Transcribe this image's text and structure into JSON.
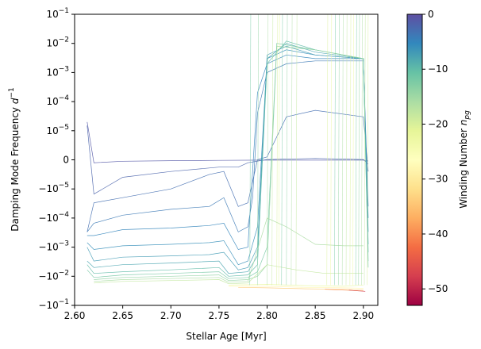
{
  "chart_data": {
    "type": "line",
    "title": "",
    "xlabel": "Stellar Age [Myr]",
    "ylabel": "Damping Mode Frequency d⁻¹",
    "xlim": [
      2.6,
      2.915
    ],
    "ylim_symlog": [
      -0.1,
      0.1
    ],
    "yscale": "symlog",
    "symlog_linthresh": 1e-05,
    "x_ticks": [
      "2.60",
      "2.65",
      "2.70",
      "2.75",
      "2.80",
      "2.85",
      "2.90"
    ],
    "x_tick_values": [
      2.6,
      2.65,
      2.7,
      2.75,
      2.8,
      2.85,
      2.9
    ],
    "y_ticks": [
      {
        "base": "10",
        "exp": "−1",
        "neg": false,
        "value": 0.1
      },
      {
        "base": "10",
        "exp": "−2",
        "neg": false,
        "value": 0.01
      },
      {
        "base": "10",
        "exp": "−3",
        "neg": false,
        "value": 0.001
      },
      {
        "base": "10",
        "exp": "−4",
        "neg": false,
        "value": 0.0001
      },
      {
        "base": "10",
        "exp": "−5",
        "neg": false,
        "value": 1e-05
      },
      {
        "base": "0",
        "exp": "",
        "neg": false,
        "value": 0
      },
      {
        "base": "10",
        "exp": "−5",
        "neg": true,
        "value": -1e-05
      },
      {
        "base": "10",
        "exp": "−4",
        "neg": true,
        "value": -0.0001
      },
      {
        "base": "10",
        "exp": "−3",
        "neg": true,
        "value": -0.001
      },
      {
        "base": "10",
        "exp": "−2",
        "neg": true,
        "value": -0.01
      },
      {
        "base": "10",
        "exp": "−1",
        "neg": true,
        "value": -0.1
      }
    ],
    "grid": false,
    "colorbar": {
      "label": "Winding Number",
      "label_symbol": "n",
      "label_sub": "pg",
      "range": [
        -53,
        0
      ],
      "colormap": "Spectral",
      "ticks": [
        "0",
        "−10",
        "−20",
        "−30",
        "−40",
        "−50"
      ],
      "tick_values": [
        0,
        -10,
        -20,
        -30,
        -40,
        -50
      ],
      "stops": [
        "#9e0142",
        "#d53e4f",
        "#f46d43",
        "#fdae61",
        "#fee08b",
        "#ffffbf",
        "#e6f598",
        "#abdda4",
        "#66c2a5",
        "#3288bd",
        "#5e4fa2"
      ]
    },
    "series": [
      {
        "npg": -1,
        "x": [
          2.613,
          2.62,
          2.65,
          2.7,
          2.75,
          2.8,
          2.85,
          2.9,
          2.905
        ],
        "y": [
          2e-05,
          -1e-06,
          -5e-07,
          -3e-07,
          -2e-07,
          -1e-07,
          -1e-07,
          -1e-07,
          -4e-07
        ]
      },
      {
        "npg": -2,
        "x": [
          2.613,
          2.62,
          2.65,
          2.7,
          2.75,
          2.77,
          2.78,
          2.8,
          2.85,
          2.9,
          2.905
        ],
        "y": [
          1.5e-05,
          -1.5e-05,
          -6e-06,
          -4e-06,
          -2.5e-06,
          -2.5e-06,
          -1e-06,
          1e-07,
          5e-07,
          1e-07,
          -1.5e-06
        ]
      },
      {
        "npg": -3,
        "x": [
          2.613,
          2.62,
          2.65,
          2.7,
          2.74,
          2.755,
          2.77,
          2.78,
          2.79,
          2.8,
          2.82,
          2.85,
          2.9,
          2.905
        ],
        "y": [
          -0.0003,
          -3e-05,
          -2e-05,
          -1e-05,
          -5e-06,
          -4e-06,
          -4e-05,
          -3e-05,
          5e-08,
          1e-06,
          3e-05,
          5e-05,
          3e-05,
          -4e-06
        ]
      },
      {
        "npg": -4,
        "x": [
          2.613,
          2.62,
          2.65,
          2.7,
          2.74,
          2.755,
          2.77,
          2.78,
          2.785,
          2.79,
          2.8,
          2.82,
          2.85,
          2.9,
          2.905
        ],
        "y": [
          -0.0003,
          -0.00015,
          -8e-05,
          -5e-05,
          -4e-05,
          -2e-05,
          -0.0003,
          -0.0002,
          -2e-05,
          4e-05,
          0.001,
          0.002,
          0.0025,
          0.0025,
          -4e-05
        ]
      },
      {
        "npg": -5,
        "x": [
          2.613,
          2.62,
          2.65,
          2.7,
          2.74,
          2.755,
          2.77,
          2.78,
          2.79,
          2.8,
          2.82,
          2.85,
          2.9,
          2.905
        ],
        "y": [
          -0.0004,
          -0.0004,
          -0.00025,
          -0.00022,
          -0.00018,
          -0.00015,
          -0.0012,
          -0.001,
          0.0002,
          0.002,
          0.004,
          0.003,
          0.003,
          -0.0001
        ]
      },
      {
        "npg": -6,
        "x": [
          2.613,
          2.62,
          2.65,
          2.7,
          2.74,
          2.755,
          2.77,
          2.78,
          2.79,
          2.8,
          2.82,
          2.85,
          2.9,
          2.905
        ],
        "y": [
          -0.0007,
          -0.0012,
          -0.0009,
          -0.0008,
          -0.0007,
          -0.0006,
          -0.004,
          -0.003,
          -0.0002,
          0.003,
          0.006,
          0.004,
          0.003,
          -0.0003
        ]
      },
      {
        "npg": -7,
        "x": [
          2.613,
          2.62,
          2.65,
          2.7,
          2.74,
          2.755,
          2.77,
          2.78,
          2.79,
          2.8,
          2.82,
          2.85,
          2.9,
          2.905
        ],
        "y": [
          -0.001,
          -0.003,
          -0.0022,
          -0.002,
          -0.0018,
          -0.0015,
          -0.006,
          -0.005,
          -0.001,
          0.004,
          0.008,
          0.004,
          0.003,
          -0.0008
        ]
      },
      {
        "npg": -8,
        "x": [
          2.613,
          2.62,
          2.65,
          2.7,
          2.75,
          2.76,
          2.78,
          2.79,
          2.8,
          2.82,
          2.85,
          2.9,
          2.905
        ],
        "y": [
          -0.003,
          -0.005,
          -0.004,
          -0.0035,
          -0.003,
          -0.008,
          -0.007,
          -0.002,
          0.003,
          0.01,
          0.005,
          0.003,
          -0.0015
        ]
      },
      {
        "npg": -10,
        "x": [
          2.613,
          2.62,
          2.65,
          2.7,
          2.75,
          2.76,
          2.78,
          2.79,
          2.8,
          2.82,
          2.85,
          2.9,
          2.905
        ],
        "y": [
          -0.004,
          -0.008,
          -0.007,
          -0.006,
          -0.005,
          -0.01,
          -0.009,
          -0.004,
          0.002,
          0.012,
          0.006,
          0.003,
          -0.003
        ]
      },
      {
        "npg": -12,
        "x": [
          2.613,
          2.62,
          2.65,
          2.7,
          2.75,
          2.76,
          2.78,
          2.79,
          2.8,
          2.81,
          2.85,
          2.9,
          2.905
        ],
        "y": [
          -0.006,
          -0.011,
          -0.009,
          -0.008,
          -0.007,
          -0.012,
          -0.011,
          -0.007,
          -0.001,
          0.01,
          0.006,
          0.003,
          -0.005
        ]
      },
      {
        "npg": -14,
        "x": [
          2.62,
          2.65,
          2.7,
          2.75,
          2.76,
          2.78,
          2.79,
          2.8,
          2.81,
          2.85,
          2.9
        ],
        "y": [
          -0.013,
          -0.011,
          -0.01,
          -0.009,
          -0.014,
          -0.013,
          -0.01,
          -0.004,
          0.008,
          0.006,
          0.003
        ]
      },
      {
        "npg": -16,
        "x": [
          2.62,
          2.65,
          2.7,
          2.75,
          2.76,
          2.78,
          2.8,
          2.82,
          2.85,
          2.88,
          2.9
        ],
        "y": [
          -0.015,
          -0.013,
          -0.012,
          -0.011,
          -0.016,
          -0.015,
          -0.0001,
          -0.0002,
          -0.0008,
          -0.0009,
          -0.0009
        ]
      },
      {
        "npg": -18,
        "x": [
          2.62,
          2.65,
          2.7,
          2.75,
          2.76,
          2.78,
          2.8,
          2.83,
          2.86,
          2.9
        ],
        "y": [
          -0.017,
          -0.015,
          -0.014,
          -0.013,
          -0.018,
          -0.017,
          -0.004,
          -0.006,
          -0.008,
          -0.008
        ]
      },
      {
        "npg": -22,
        "x": [
          2.76,
          2.8,
          2.84,
          2.88,
          2.9
        ],
        "y": [
          -0.02,
          -0.019,
          -0.021,
          -0.022,
          -0.02
        ]
      },
      {
        "npg": -28,
        "x": [
          2.76,
          2.8,
          2.84,
          2.88,
          2.9
        ],
        "y": [
          -0.022,
          -0.022,
          -0.024,
          -0.025,
          -0.026
        ]
      },
      {
        "npg": -34,
        "x": [
          2.77,
          2.8,
          2.84,
          2.88,
          2.9
        ],
        "y": [
          -0.024,
          -0.025,
          -0.027,
          -0.028,
          -0.03
        ]
      },
      {
        "npg": -40,
        "x": [
          2.86,
          2.88,
          2.9
        ],
        "y": [
          -0.028,
          -0.03,
          -0.032
        ]
      },
      {
        "npg": -48,
        "x": [
          2.885,
          2.895,
          2.902
        ],
        "y": [
          -0.03,
          -0.032,
          -0.033
        ]
      }
    ]
  }
}
